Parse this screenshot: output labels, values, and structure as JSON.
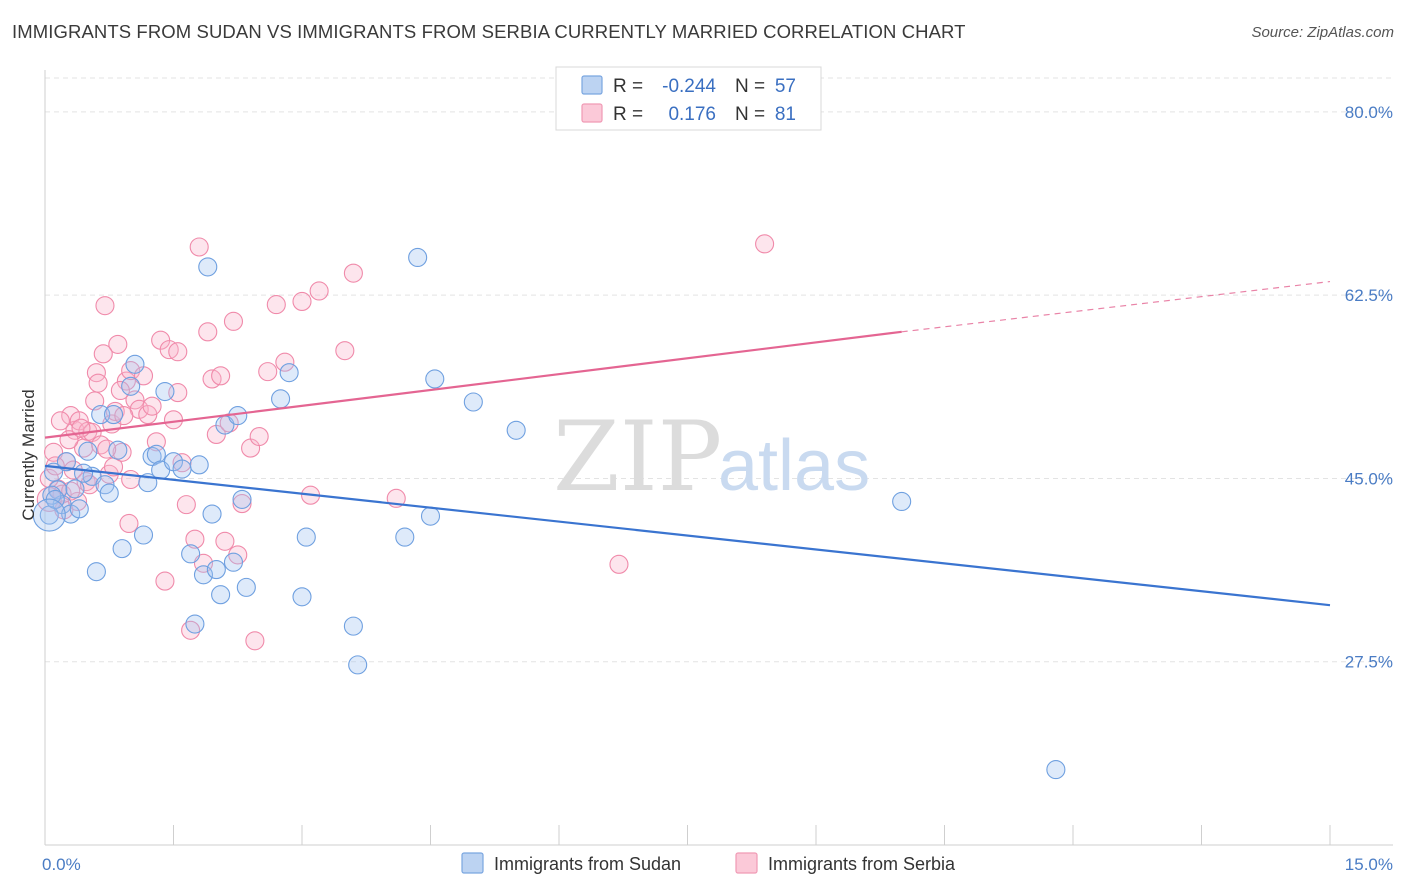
{
  "header": {
    "title": "IMMIGRANTS FROM SUDAN VS IMMIGRANTS FROM SERBIA CURRENTLY MARRIED CORRELATION CHART",
    "source": "Source: ZipAtlas.com"
  },
  "watermark": {
    "zip": "ZIP",
    "atlas": "atlas"
  },
  "legend_top": {
    "rows": [
      {
        "r_label": "R =",
        "r_value": "-0.244",
        "n_label": "N =",
        "n_value": "57"
      },
      {
        "r_label": "R =",
        "r_value": "0.176",
        "n_label": "N =",
        "n_value": "81"
      }
    ]
  },
  "chart_data": {
    "type": "scatter",
    "title": "IMMIGRANTS FROM SUDAN VS IMMIGRANTS FROM SERBIA CURRENTLY MARRIED CORRELATION CHART",
    "xlabel": "",
    "ylabel": "Currently Married",
    "xlim": [
      0,
      15
    ],
    "ylim": [
      10,
      84
    ],
    "x_tick_labels": [
      "0.0%",
      "15.0%"
    ],
    "y_ticks": [
      27.5,
      45.0,
      62.5,
      80.0
    ],
    "y_tick_labels": [
      "27.5%",
      "45.0%",
      "62.5%",
      "80.0%"
    ],
    "grid": true,
    "legend_position": "top-center",
    "colors": {
      "sudan": "#6fa0e0",
      "serbia": "#f08aaa",
      "sudan_line": "#3a74d0",
      "serbia_line": "#e46592"
    },
    "series": [
      {
        "name": "Immigrants from Sudan",
        "r": -0.244,
        "n": 57,
        "trend": {
          "x0": 0,
          "y0": 46.2,
          "x1": 15,
          "y1": 32.9
        },
        "points": [
          [
            0.1,
            45.6
          ],
          [
            0.15,
            43.9
          ],
          [
            0.2,
            42.5
          ],
          [
            0.3,
            41.6
          ],
          [
            0.35,
            44.0
          ],
          [
            0.4,
            42.1
          ],
          [
            0.5,
            47.6
          ],
          [
            0.55,
            45.2
          ],
          [
            0.6,
            36.1
          ],
          [
            0.65,
            51.1
          ],
          [
            0.7,
            44.4
          ],
          [
            0.75,
            43.6
          ],
          [
            0.8,
            51.1
          ],
          [
            0.85,
            47.7
          ],
          [
            0.9,
            38.3
          ],
          [
            1.0,
            53.8
          ],
          [
            1.05,
            55.9
          ],
          [
            1.15,
            39.6
          ],
          [
            1.2,
            44.6
          ],
          [
            1.25,
            47.1
          ],
          [
            1.3,
            47.3
          ],
          [
            1.35,
            45.8
          ],
          [
            1.4,
            53.3
          ],
          [
            1.5,
            46.6
          ],
          [
            1.6,
            45.9
          ],
          [
            1.7,
            37.8
          ],
          [
            1.75,
            31.1
          ],
          [
            1.8,
            46.3
          ],
          [
            1.85,
            35.8
          ],
          [
            1.9,
            65.2
          ],
          [
            1.95,
            41.6
          ],
          [
            2.0,
            36.3
          ],
          [
            2.05,
            33.9
          ],
          [
            2.1,
            50.1
          ],
          [
            2.2,
            37.0
          ],
          [
            2.25,
            51.0
          ],
          [
            2.3,
            43.0
          ],
          [
            2.35,
            34.6
          ],
          [
            2.75,
            52.6
          ],
          [
            2.85,
            55.1
          ],
          [
            3.0,
            33.7
          ],
          [
            3.05,
            39.4
          ],
          [
            3.6,
            30.9
          ],
          [
            3.65,
            27.2
          ],
          [
            4.2,
            39.4
          ],
          [
            4.35,
            66.1
          ],
          [
            4.5,
            41.4
          ],
          [
            4.55,
            54.5
          ],
          [
            5.0,
            52.3
          ],
          [
            5.5,
            49.6
          ],
          [
            10.0,
            42.8
          ],
          [
            11.8,
            17.2
          ],
          [
            0.08,
            43.4
          ],
          [
            0.25,
            46.6
          ],
          [
            0.45,
            45.5
          ],
          [
            0.05,
            41.5
          ],
          [
            0.12,
            43.0
          ]
        ]
      },
      {
        "name": "Immigrants from Serbia",
        "r": 0.176,
        "n": 81,
        "trend": {
          "x0": 0,
          "y0": 48.9,
          "x1": 10.0,
          "y1": 59.0
        },
        "trend_dashed": {
          "x0": 10.0,
          "y0": 59.0,
          "x1": 15,
          "y1": 63.8
        },
        "points": [
          [
            0.1,
            47.5
          ],
          [
            0.15,
            44.0
          ],
          [
            0.2,
            43.5
          ],
          [
            0.25,
            46.6
          ],
          [
            0.3,
            51.0
          ],
          [
            0.35,
            49.6
          ],
          [
            0.4,
            50.5
          ],
          [
            0.45,
            47.9
          ],
          [
            0.5,
            49.5
          ],
          [
            0.55,
            49.4
          ],
          [
            0.6,
            55.1
          ],
          [
            0.65,
            48.2
          ],
          [
            0.7,
            61.5
          ],
          [
            0.75,
            45.4
          ],
          [
            0.8,
            46.1
          ],
          [
            0.85,
            57.8
          ],
          [
            0.9,
            47.5
          ],
          [
            0.95,
            54.3
          ],
          [
            1.0,
            55.3
          ],
          [
            1.05,
            52.5
          ],
          [
            1.1,
            51.6
          ],
          [
            1.15,
            54.8
          ],
          [
            1.2,
            51.1
          ],
          [
            1.25,
            51.9
          ],
          [
            1.3,
            48.5
          ],
          [
            1.35,
            58.2
          ],
          [
            1.4,
            35.2
          ],
          [
            1.45,
            57.3
          ],
          [
            1.5,
            50.6
          ],
          [
            1.55,
            53.2
          ],
          [
            1.6,
            46.5
          ],
          [
            1.65,
            42.5
          ],
          [
            1.7,
            30.5
          ],
          [
            1.75,
            39.2
          ],
          [
            1.8,
            67.1
          ],
          [
            1.85,
            36.9
          ],
          [
            1.9,
            59.0
          ],
          [
            1.95,
            54.5
          ],
          [
            2.0,
            49.2
          ],
          [
            2.05,
            54.8
          ],
          [
            2.1,
            39.0
          ],
          [
            2.15,
            50.3
          ],
          [
            2.2,
            60.0
          ],
          [
            2.25,
            37.7
          ],
          [
            2.3,
            42.6
          ],
          [
            2.4,
            47.9
          ],
          [
            2.45,
            29.5
          ],
          [
            2.5,
            49.0
          ],
          [
            2.6,
            55.2
          ],
          [
            2.7,
            61.6
          ],
          [
            2.8,
            56.1
          ],
          [
            0.05,
            45.0
          ],
          [
            0.12,
            46.2
          ],
          [
            0.18,
            50.5
          ],
          [
            0.22,
            42.0
          ],
          [
            0.28,
            48.7
          ],
          [
            0.33,
            45.8
          ],
          [
            0.38,
            42.8
          ],
          [
            0.42,
            49.8
          ],
          [
            0.48,
            44.7
          ],
          [
            0.52,
            44.4
          ],
          [
            0.58,
            52.4
          ],
          [
            0.62,
            54.1
          ],
          [
            0.68,
            56.9
          ],
          [
            0.72,
            47.8
          ],
          [
            0.78,
            50.2
          ],
          [
            0.82,
            51.4
          ],
          [
            0.88,
            53.4
          ],
          [
            0.92,
            51.0
          ],
          [
            0.98,
            40.7
          ],
          [
            3.0,
            61.9
          ],
          [
            3.1,
            43.4
          ],
          [
            3.2,
            62.9
          ],
          [
            3.5,
            57.2
          ],
          [
            3.6,
            64.6
          ],
          [
            4.1,
            43.1
          ],
          [
            6.7,
            36.8
          ],
          [
            8.4,
            67.4
          ],
          [
            1.55,
            57.1
          ],
          [
            1.0,
            44.9
          ],
          [
            0.3,
            43.8
          ]
        ]
      }
    ]
  },
  "bottom_legend": {
    "items": [
      {
        "label": "Immigrants from Sudan"
      },
      {
        "label": "Immigrants from Serbia"
      }
    ]
  },
  "axes": {
    "ylabel": "Currently Married",
    "x_left": "0.0%",
    "x_right": "15.0%"
  }
}
